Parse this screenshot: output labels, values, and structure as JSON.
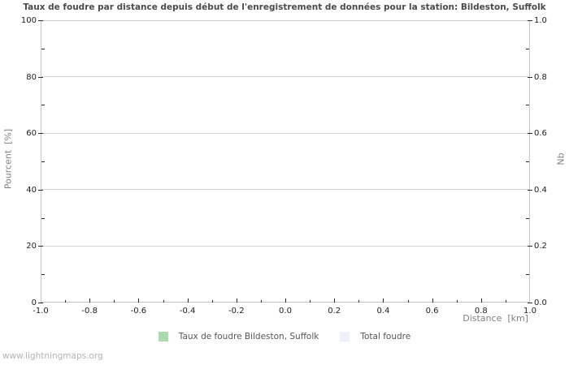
{
  "page": {
    "watermark": "www.lightningmaps.org"
  },
  "chart_data": {
    "type": "area",
    "title": "Taux de foudre par distance depuis début de l'enregistrement de données pour la station: Bildeston, Suffolk",
    "xlabel": "Distance  [km]",
    "ylabel_left": "Pourcent  [%]",
    "ylabel_right": "Nb",
    "xlim": [
      -1.0,
      1.0
    ],
    "ylim_left": [
      0,
      100
    ],
    "ylim_right": [
      0.0,
      1.0
    ],
    "x_ticks_major": [
      -1.0,
      -0.8,
      -0.6,
      -0.4,
      -0.2,
      0.0,
      0.2,
      0.4,
      0.6,
      0.8,
      1.0
    ],
    "x_tick_labels": [
      "-1.0",
      "-0.8",
      "-0.6",
      "-0.4",
      "-0.2",
      "0.0",
      "0.2",
      "0.4",
      "0.6",
      "0.8",
      "1.0"
    ],
    "x_tick_minor_step": 0.1,
    "y_left_ticks_major": [
      0,
      20,
      40,
      60,
      80,
      100
    ],
    "y_left_tick_labels": [
      "0",
      "20",
      "40",
      "60",
      "80",
      "100"
    ],
    "y_left_tick_minor_step": 10,
    "y_right_ticks_major": [
      0.0,
      0.2,
      0.4,
      0.6,
      0.8,
      1.0
    ],
    "y_right_tick_labels": [
      "0.0",
      "0.2",
      "0.4",
      "0.6",
      "0.8",
      "1.0"
    ],
    "y_right_tick_minor_step": 0.1,
    "grid": "horizontal-only",
    "legend_position": "bottom-center",
    "series": [
      {
        "name": "Taux de foudre Bildeston, Suffolk",
        "color": "#abdbab",
        "axis": "left",
        "values": []
      },
      {
        "name": "Total foudre",
        "color": "#edeffa",
        "axis": "right",
        "values": []
      }
    ],
    "colors": {
      "grid": "#d4d4d4",
      "plot_border": "#c6c6c6",
      "tick": "#2a2a2a",
      "title_text": "#4a4a4a",
      "axis_label_text": "#808080",
      "tick_label_text": "#1c1c1c",
      "watermark_text": "#b3b3b3"
    }
  }
}
